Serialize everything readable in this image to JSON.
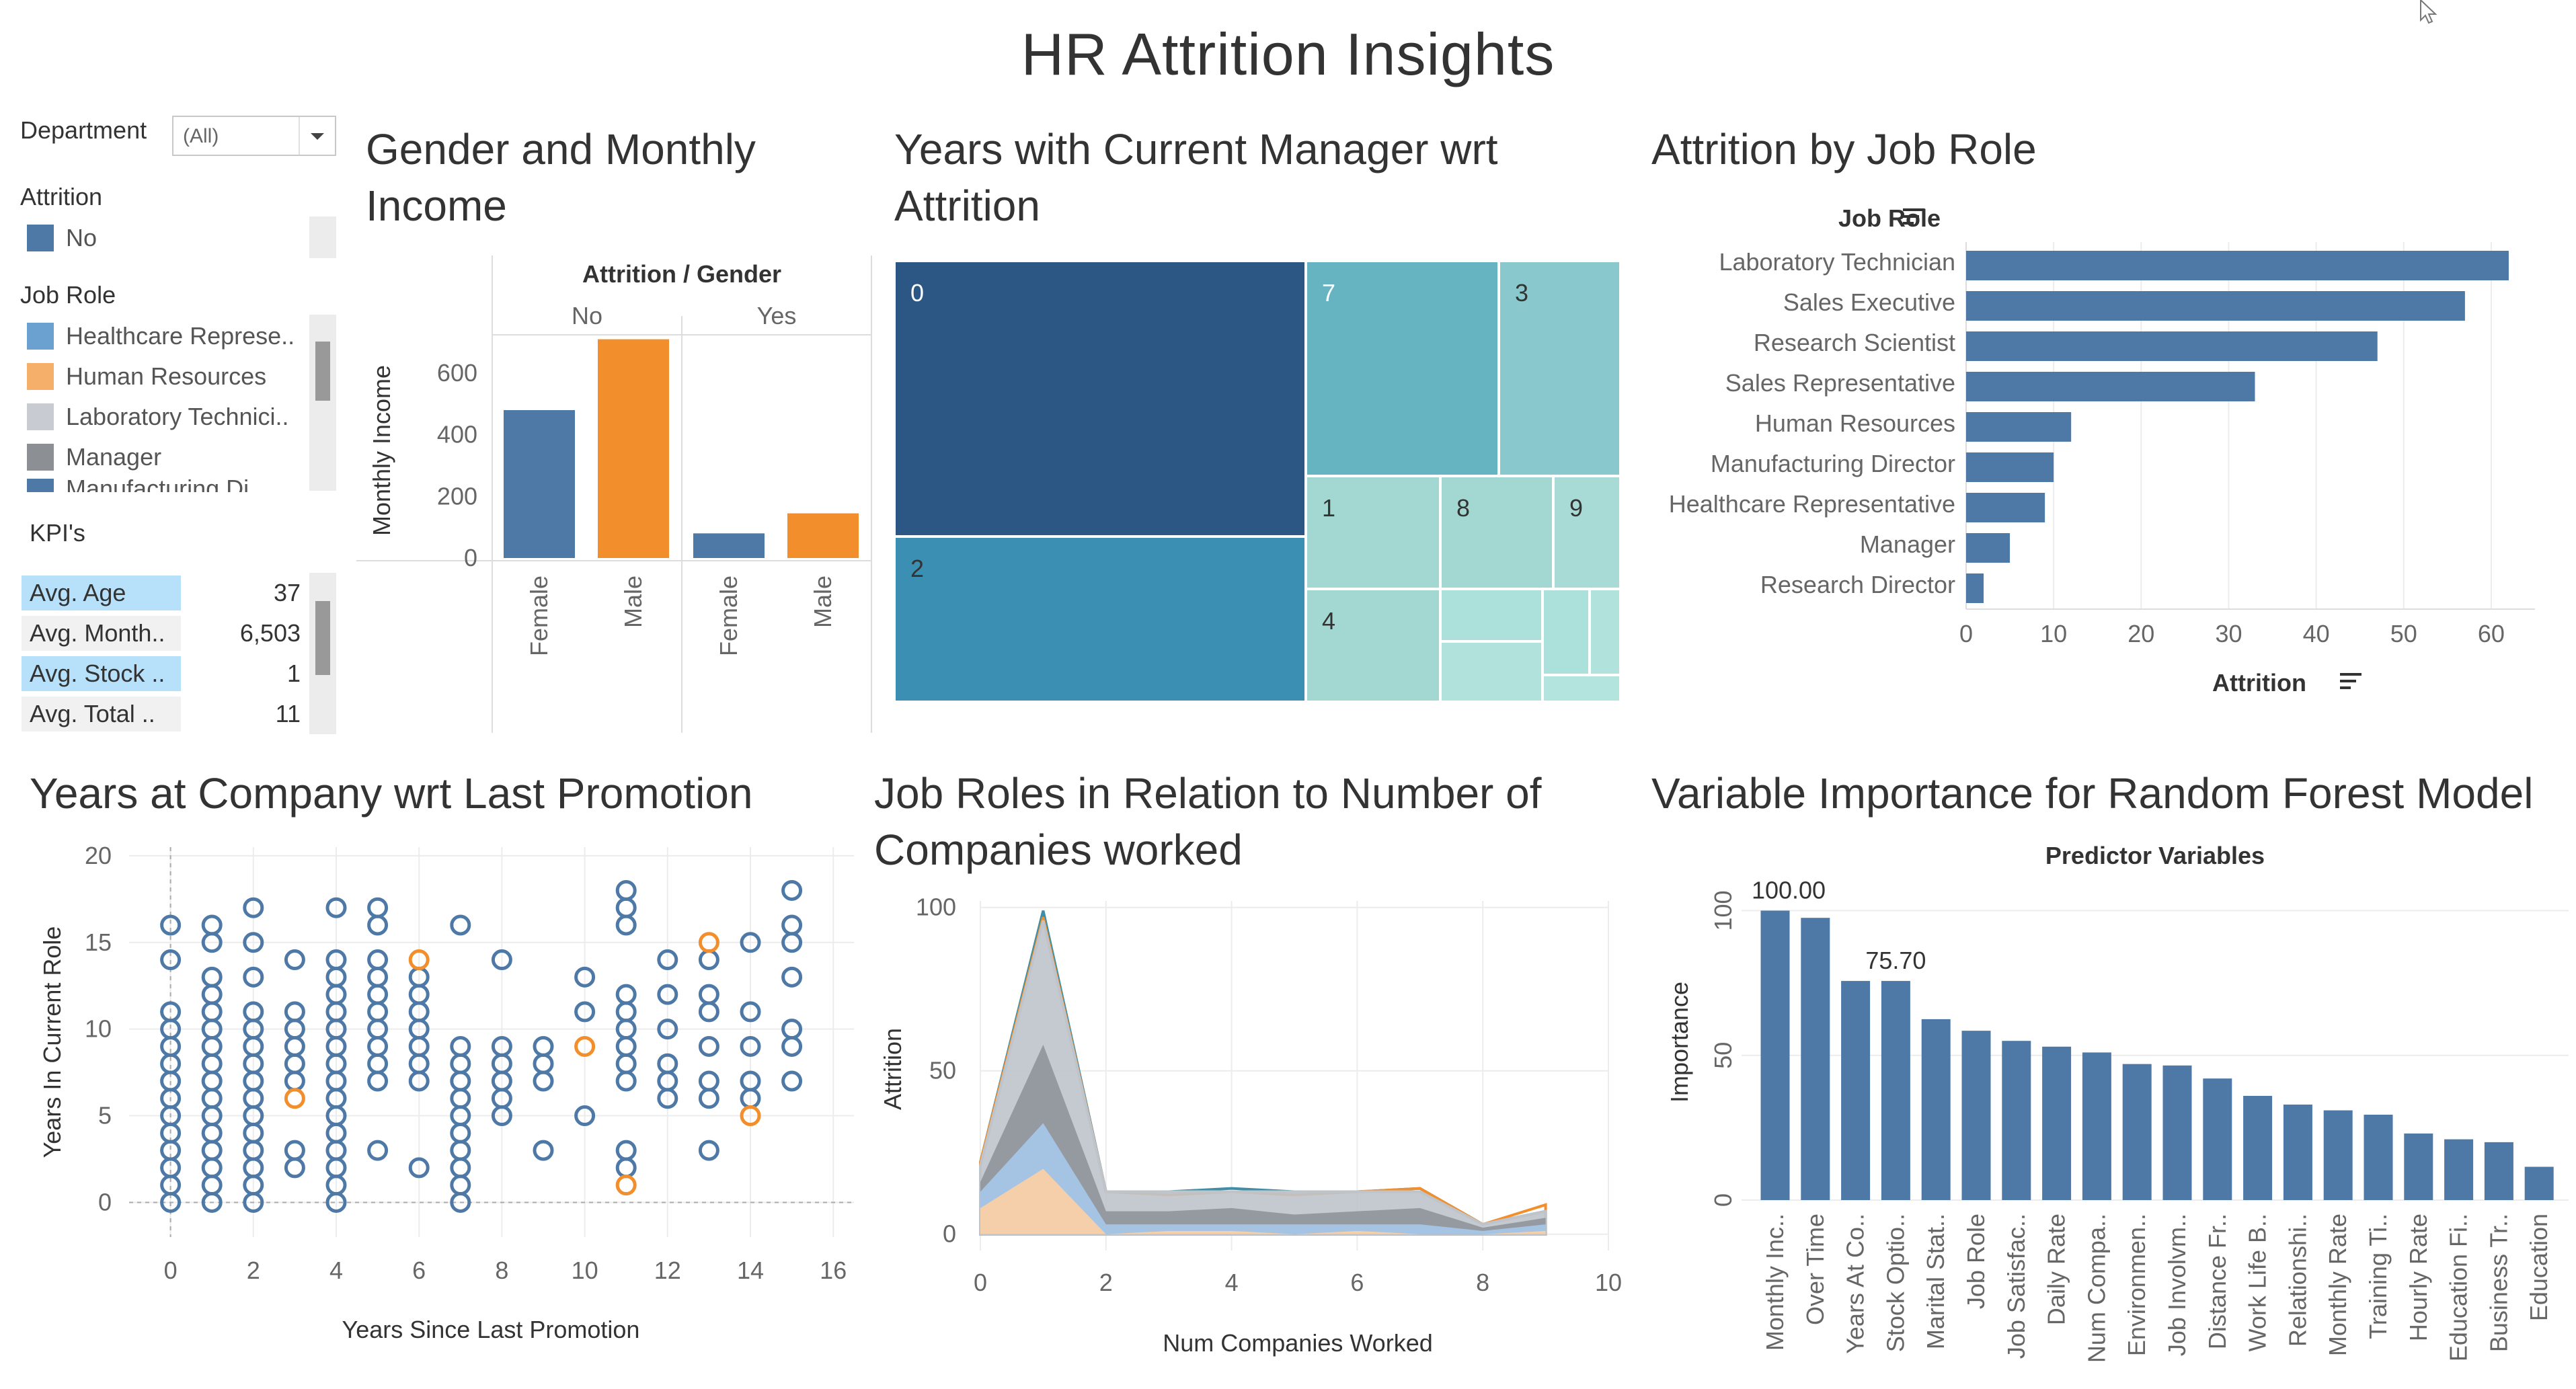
{
  "title": "HR Attrition Insights",
  "filters": {
    "department_label": "Department",
    "department_value": "(All)",
    "attrition_label": "Attrition",
    "attrition_items": [
      {
        "label": "No",
        "color": "#4e79a7"
      }
    ],
    "job_role_label": "Job Role",
    "job_role_items": [
      {
        "label": "Healthcare Represe..",
        "color": "#6ba1d0"
      },
      {
        "label": "Human Resources",
        "color": "#f6ae6b"
      },
      {
        "label": "Laboratory Technici..",
        "color": "#c8ccd2"
      },
      {
        "label": "Manager",
        "color": "#8c8f94"
      }
    ],
    "job_role_partial": "Manufacturing Di...",
    "kpi_label": "KPI's",
    "kpis": [
      {
        "name": "Avg. Age",
        "value": "37",
        "highlight": true
      },
      {
        "name": "Avg. Month..",
        "value": "6,503",
        "highlight": false
      },
      {
        "name": "Avg. Stock ..",
        "value": "1",
        "highlight": true
      },
      {
        "name": "Avg. Total ..",
        "value": "11",
        "highlight": false
      }
    ]
  },
  "sheets": {
    "gender_income": "Gender and Monthly Income",
    "manager_years": "Years with Current Manager wrt Attrition",
    "job_role": "Attrition by Job Role",
    "promotion": "Years at Company wrt Last Promotion",
    "companies": "Job Roles in Relation to Number of Companies worked",
    "importance": "Variable Importance for Random Forest Model"
  },
  "chart_data": [
    {
      "id": "gender_income",
      "type": "bar",
      "header": "Attrition / Gender",
      "groups": [
        "No",
        "Yes"
      ],
      "categories": [
        "Female",
        "Male"
      ],
      "ylabel": "Monthly Income",
      "ylim": [
        0,
        720
      ],
      "yticks": [
        0,
        200,
        400,
        600
      ],
      "values": [
        [
          480,
          710
        ],
        [
          80,
          145
        ]
      ],
      "colors": [
        "#4e79a7",
        "#f28e2b"
      ]
    },
    {
      "id": "manager_years",
      "type": "heatmap",
      "labels": [
        "0",
        "7",
        "3",
        "2",
        "1",
        "8",
        "9",
        "4"
      ]
    },
    {
      "id": "job_role",
      "type": "bar",
      "orientation": "horizontal",
      "ylabel": "Job Role",
      "xlabel": "Attrition",
      "categories": [
        "Laboratory Technician",
        "Sales Executive",
        "Research Scientist",
        "Sales Representative",
        "Human Resources",
        "Manufacturing Director",
        "Healthcare Representative",
        "Manager",
        "Research Director"
      ],
      "values": [
        62,
        57,
        47,
        33,
        12,
        10,
        9,
        5,
        2
      ],
      "xlim": [
        0,
        65
      ],
      "xticks": [
        0,
        10,
        20,
        30,
        40,
        50,
        60
      ],
      "color": "#4e79a7"
    },
    {
      "id": "promotion",
      "type": "scatter",
      "xlabel": "Years Since Last Promotion",
      "ylabel": "Years In Current Role",
      "xlim": [
        -1,
        16.5
      ],
      "ylim": [
        -2,
        20.5
      ],
      "xticks": [
        0,
        2,
        4,
        6,
        8,
        10,
        12,
        14,
        16
      ],
      "yticks": [
        0,
        5,
        10,
        15,
        20
      ],
      "series": [
        {
          "color": "#4e79a7",
          "points": [
            [
              0,
              0
            ],
            [
              0,
              1
            ],
            [
              0,
              2
            ],
            [
              0,
              3
            ],
            [
              0,
              4
            ],
            [
              0,
              5
            ],
            [
              0,
              6
            ],
            [
              0,
              7
            ],
            [
              0,
              8
            ],
            [
              0,
              9
            ],
            [
              0,
              10
            ],
            [
              0,
              11
            ],
            [
              0,
              14
            ],
            [
              0,
              16
            ],
            [
              1,
              0
            ],
            [
              1,
              1
            ],
            [
              1,
              2
            ],
            [
              1,
              3
            ],
            [
              1,
              4
            ],
            [
              1,
              5
            ],
            [
              1,
              6
            ],
            [
              1,
              7
            ],
            [
              1,
              8
            ],
            [
              1,
              9
            ],
            [
              1,
              10
            ],
            [
              1,
              11
            ],
            [
              1,
              12
            ],
            [
              1,
              13
            ],
            [
              1,
              15
            ],
            [
              1,
              16
            ],
            [
              2,
              0
            ],
            [
              2,
              1
            ],
            [
              2,
              2
            ],
            [
              2,
              3
            ],
            [
              2,
              4
            ],
            [
              2,
              5
            ],
            [
              2,
              6
            ],
            [
              2,
              7
            ],
            [
              2,
              8
            ],
            [
              2,
              9
            ],
            [
              2,
              10
            ],
            [
              2,
              11
            ],
            [
              2,
              13
            ],
            [
              2,
              15
            ],
            [
              2,
              17
            ],
            [
              3,
              2
            ],
            [
              3,
              3
            ],
            [
              3,
              7
            ],
            [
              3,
              8
            ],
            [
              3,
              9
            ],
            [
              3,
              10
            ],
            [
              3,
              11
            ],
            [
              3,
              14
            ],
            [
              4,
              0
            ],
            [
              4,
              1
            ],
            [
              4,
              2
            ],
            [
              4,
              3
            ],
            [
              4,
              4
            ],
            [
              4,
              5
            ],
            [
              4,
              6
            ],
            [
              4,
              7
            ],
            [
              4,
              8
            ],
            [
              4,
              9
            ],
            [
              4,
              10
            ],
            [
              4,
              11
            ],
            [
              4,
              12
            ],
            [
              4,
              13
            ],
            [
              4,
              14
            ],
            [
              4,
              17
            ],
            [
              5,
              3
            ],
            [
              5,
              7
            ],
            [
              5,
              8
            ],
            [
              5,
              9
            ],
            [
              5,
              10
            ],
            [
              5,
              11
            ],
            [
              5,
              12
            ],
            [
              5,
              13
            ],
            [
              5,
              14
            ],
            [
              5,
              16
            ],
            [
              5,
              17
            ],
            [
              6,
              2
            ],
            [
              6,
              7
            ],
            [
              6,
              8
            ],
            [
              6,
              9
            ],
            [
              6,
              10
            ],
            [
              6,
              11
            ],
            [
              6,
              12
            ],
            [
              6,
              13
            ],
            [
              7,
              0
            ],
            [
              7,
              1
            ],
            [
              7,
              2
            ],
            [
              7,
              3
            ],
            [
              7,
              4
            ],
            [
              7,
              5
            ],
            [
              7,
              6
            ],
            [
              7,
              7
            ],
            [
              7,
              8
            ],
            [
              7,
              9
            ],
            [
              7,
              16
            ],
            [
              8,
              5
            ],
            [
              8,
              6
            ],
            [
              8,
              7
            ],
            [
              8,
              8
            ],
            [
              8,
              9
            ],
            [
              8,
              14
            ],
            [
              9,
              3
            ],
            [
              9,
              7
            ],
            [
              9,
              8
            ],
            [
              9,
              9
            ],
            [
              10,
              5
            ],
            [
              10,
              11
            ],
            [
              10,
              13
            ],
            [
              11,
              2
            ],
            [
              11,
              3
            ],
            [
              11,
              7
            ],
            [
              11,
              8
            ],
            [
              11,
              9
            ],
            [
              11,
              10
            ],
            [
              11,
              11
            ],
            [
              11,
              12
            ],
            [
              11,
              16
            ],
            [
              11,
              17
            ],
            [
              11,
              18
            ],
            [
              12,
              6
            ],
            [
              12,
              7
            ],
            [
              12,
              8
            ],
            [
              12,
              10
            ],
            [
              12,
              12
            ],
            [
              12,
              14
            ],
            [
              13,
              3
            ],
            [
              13,
              6
            ],
            [
              13,
              7
            ],
            [
              13,
              9
            ],
            [
              13,
              11
            ],
            [
              13,
              12
            ],
            [
              13,
              14
            ],
            [
              14,
              6
            ],
            [
              14,
              7
            ],
            [
              14,
              9
            ],
            [
              14,
              11
            ],
            [
              14,
              15
            ],
            [
              15,
              7
            ],
            [
              15,
              9
            ],
            [
              15,
              10
            ],
            [
              15,
              13
            ],
            [
              15,
              15
            ],
            [
              15,
              16
            ],
            [
              15,
              18
            ]
          ]
        },
        {
          "color": "#f28e2b",
          "points": [
            [
              3,
              6
            ],
            [
              6,
              14
            ],
            [
              10,
              9
            ],
            [
              11,
              1
            ],
            [
              13,
              15
            ],
            [
              14,
              5
            ]
          ]
        }
      ]
    },
    {
      "id": "companies",
      "type": "area",
      "xlabel": "Num Companies Worked",
      "ylabel": "Attrition",
      "xlim": [
        0,
        10
      ],
      "ylim": [
        -5,
        102
      ],
      "xticks": [
        0,
        2,
        4,
        6,
        8,
        10
      ],
      "yticks": [
        0,
        50,
        100
      ],
      "x": [
        0,
        1,
        2,
        3,
        4,
        5,
        6,
        7,
        8,
        9
      ],
      "series": [
        {
          "color": "#fdd0a2",
          "values": [
            8,
            20,
            0,
            1,
            1,
            0,
            1,
            0,
            0,
            1
          ]
        },
        {
          "color": "#a6c8ea",
          "values": [
            13,
            34,
            3,
            3,
            3,
            3,
            3,
            3,
            1,
            3
          ]
        },
        {
          "color": "#8f959b",
          "values": [
            16,
            58,
            7,
            7,
            8,
            6,
            7,
            8,
            2,
            5
          ]
        },
        {
          "color": "#bfc4cb",
          "values": [
            21,
            96,
            13,
            13,
            13,
            13,
            13,
            13,
            3,
            7
          ]
        },
        {
          "color": "#f28e2b",
          "values": [
            22,
            97,
            13,
            12,
            13,
            12,
            13,
            14,
            3,
            9
          ]
        },
        {
          "color": "#3e8ea6",
          "values": [
            22,
            99,
            13,
            13,
            14,
            13,
            13,
            14,
            3,
            7
          ]
        }
      ]
    },
    {
      "id": "importance",
      "type": "bar",
      "header": "Predictor Variables",
      "ylabel": "Importance",
      "ylim": [
        0,
        108
      ],
      "yticks": [
        0,
        50,
        100
      ],
      "categories": [
        "Monthly Inc..",
        "Over Time",
        "Years At Co..",
        "Stock Optio..",
        "Marital Stat..",
        "Job Role",
        "Job Satisfac..",
        "Daily Rate",
        "Num Compa..",
        "Environmen..",
        "Job Involvm..",
        "Distance Fr..",
        "Work Life B..",
        "Relationshi..",
        "Monthly Rate",
        "Training Ti..",
        "Hourly Rate",
        "Education Fi..",
        "Business Tr..",
        "Education"
      ],
      "values": [
        100.0,
        97.5,
        75.7,
        75.7,
        62.5,
        58.5,
        55.0,
        53.0,
        51.0,
        47.0,
        46.5,
        42.0,
        36.0,
        33.0,
        31.0,
        29.5,
        23.0,
        21.0,
        20.0,
        11.5
      ],
      "data_labels": {
        "0": "100.00",
        "3": "75.70"
      },
      "color": "#4e79a7"
    }
  ]
}
